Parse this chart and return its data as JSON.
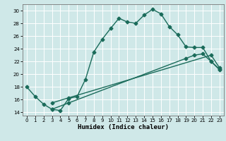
{
  "xlabel": "Humidex (Indice chaleur)",
  "bg_color": "#cfe8e8",
  "grid_color": "#ffffff",
  "line_color": "#1a6b5a",
  "xlim": [
    -0.5,
    23.5
  ],
  "ylim": [
    13.5,
    31.0
  ],
  "xticks": [
    0,
    1,
    2,
    3,
    4,
    5,
    6,
    7,
    8,
    9,
    10,
    11,
    12,
    13,
    14,
    15,
    16,
    17,
    18,
    19,
    20,
    21,
    22,
    23
  ],
  "yticks": [
    14,
    16,
    18,
    20,
    22,
    24,
    26,
    28,
    30
  ],
  "line1_x": [
    0,
    1,
    2,
    3,
    4,
    5,
    6,
    7,
    8,
    9,
    10,
    11,
    12,
    13,
    14,
    15,
    16,
    17,
    18,
    19,
    20,
    21,
    22,
    23
  ],
  "line1_y": [
    18.0,
    16.5,
    15.3,
    14.5,
    14.3,
    16.2,
    16.5,
    19.2,
    23.5,
    25.5,
    27.2,
    28.8,
    28.2,
    28.0,
    29.3,
    30.2,
    29.5,
    27.5,
    26.2,
    24.3,
    24.2,
    24.2,
    22.0,
    20.7
  ],
  "line2_x": [
    3,
    5,
    22,
    23
  ],
  "line2_y": [
    15.5,
    16.3,
    23.0,
    21.0
  ],
  "line3_x": [
    3,
    5,
    19,
    20,
    21,
    22,
    23
  ],
  "line3_y": [
    14.5,
    15.5,
    22.5,
    23.0,
    23.2,
    22.0,
    20.8
  ],
  "markersize": 2.5,
  "linewidth": 1.0
}
